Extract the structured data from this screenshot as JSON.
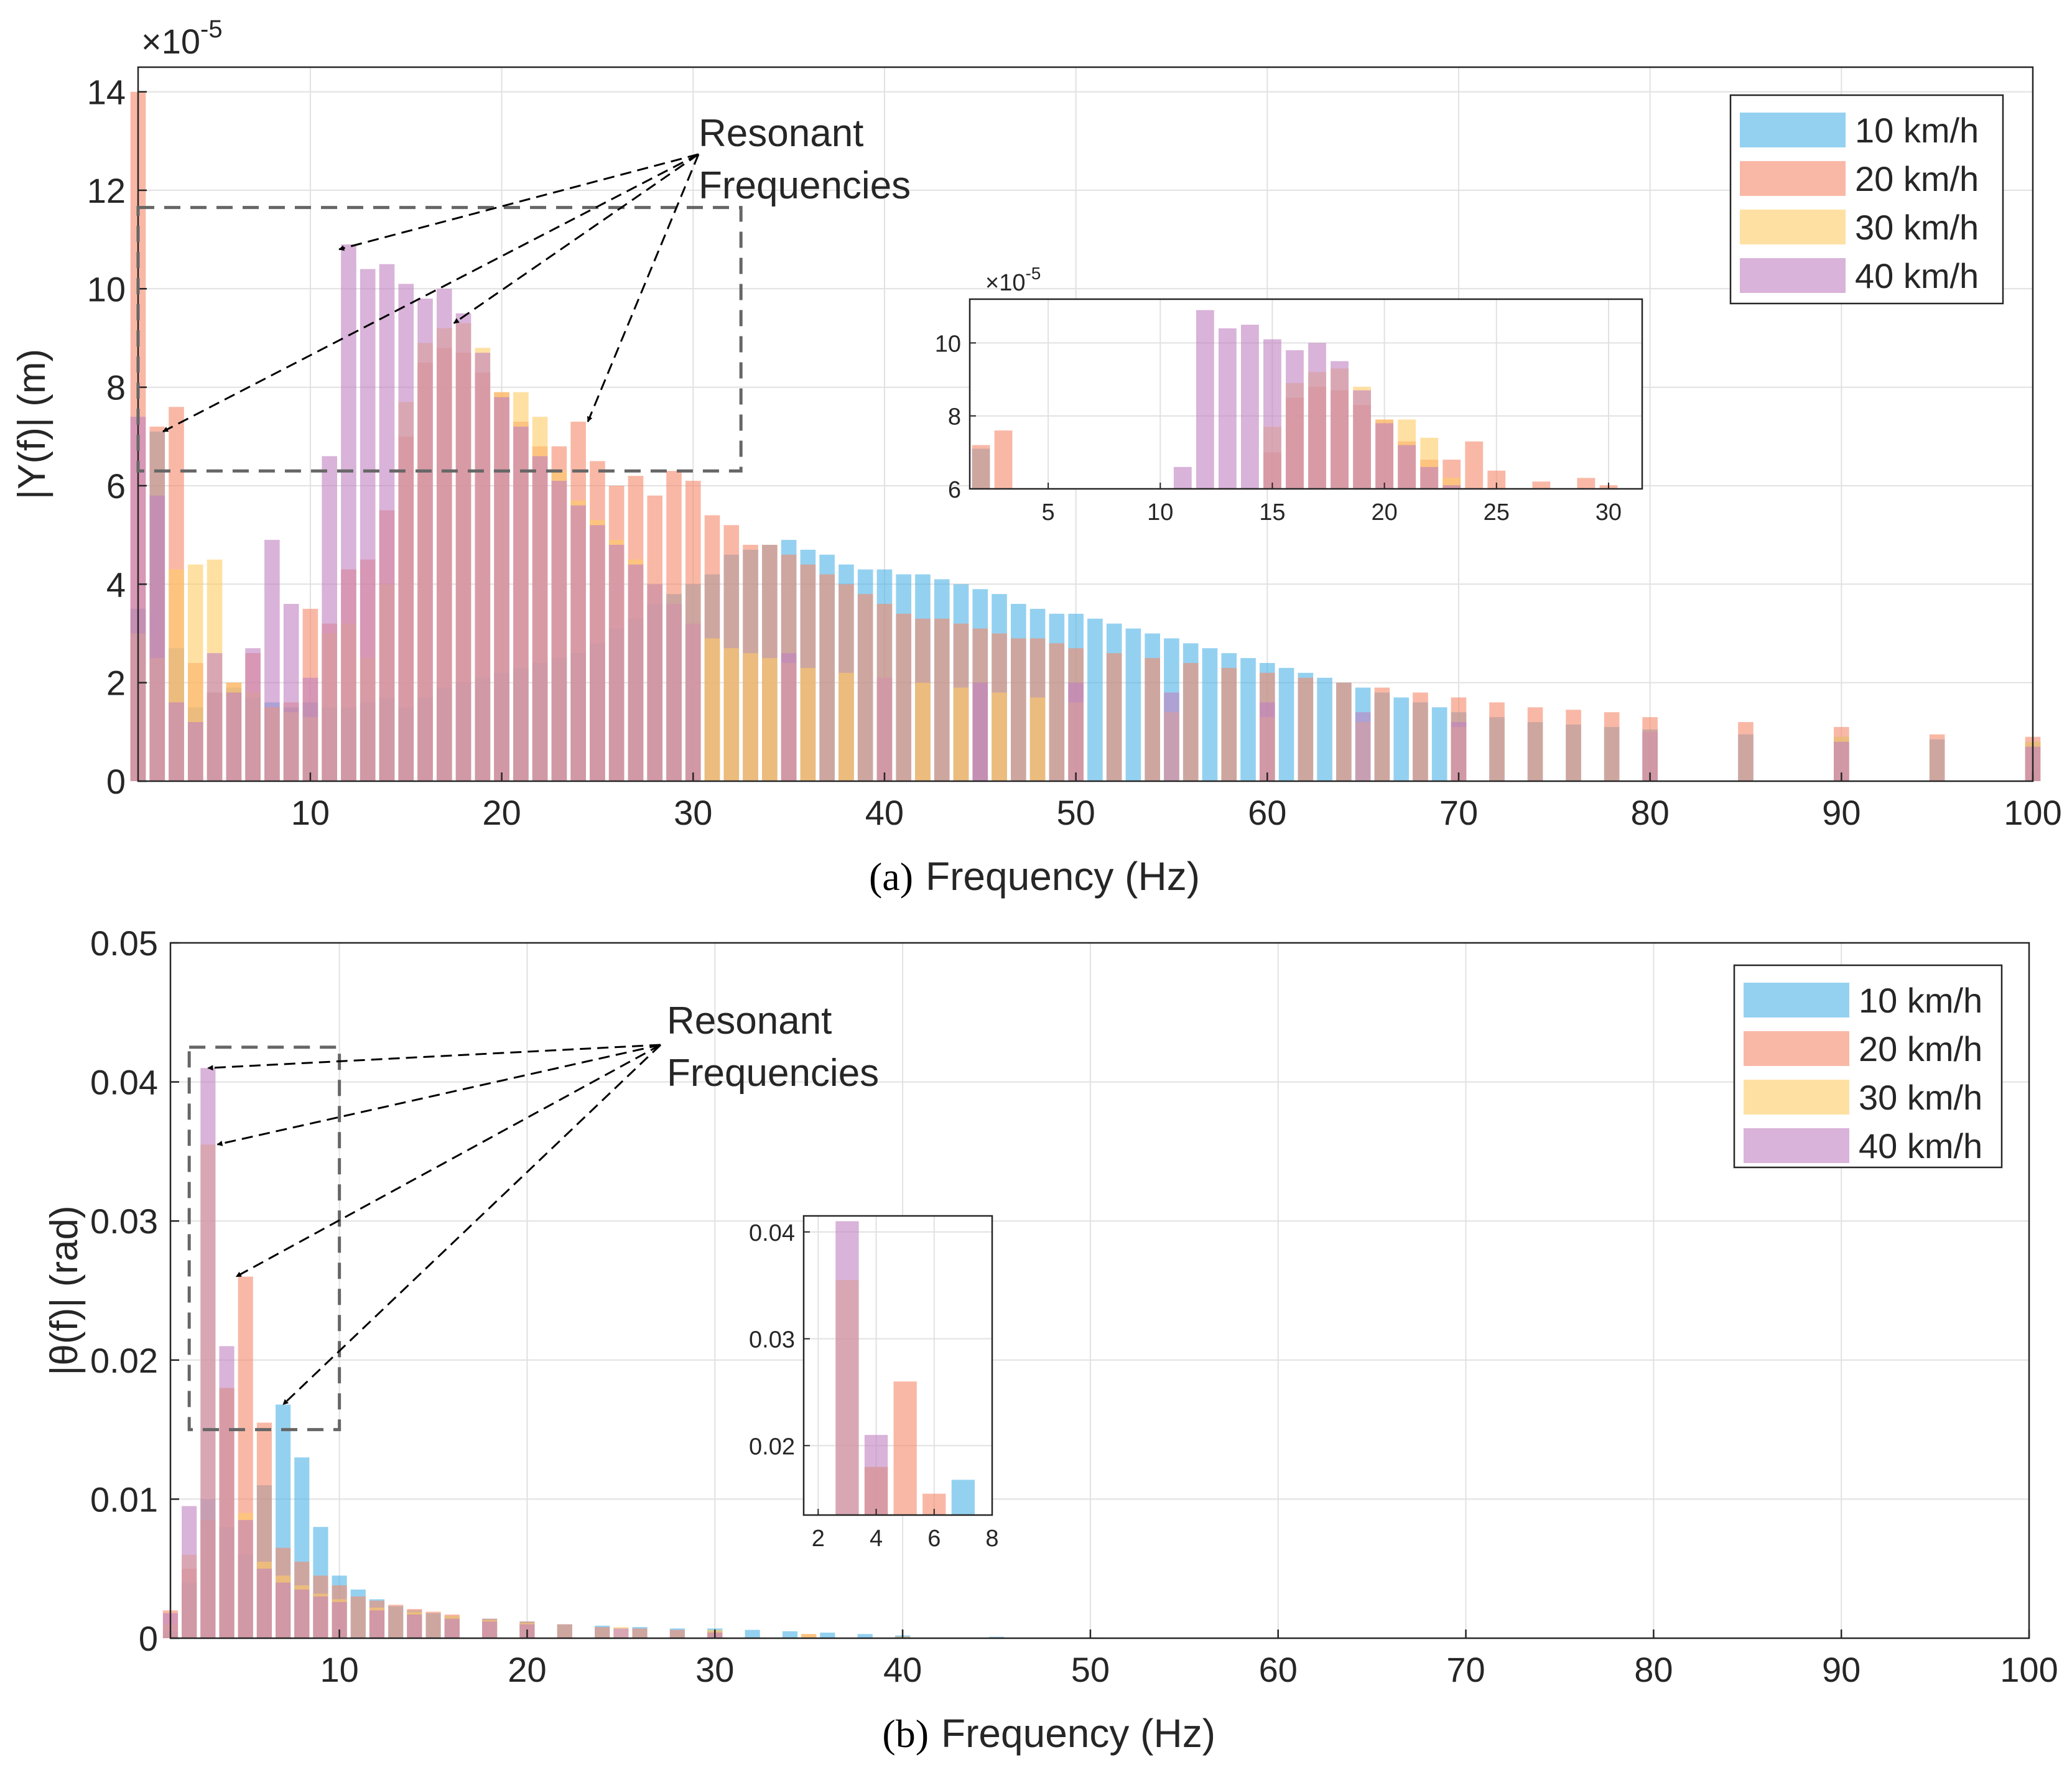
{
  "colors": {
    "10 km/h": "#4DB3E6",
    "20 km/h": "#F5896B",
    "30 km/h": "#FFCC66",
    "40 km/h": "#BF80BF",
    "grid": "#e1e1e1",
    "axis": "#262626"
  },
  "chart_data": [
    {
      "type": "bar",
      "panel_label": "(a)",
      "xlabel": "Frequency (Hz)",
      "ylabel": "|Y(f)| (m)",
      "exponent_label": "×10",
      "exponent_power": "-5",
      "xlim": [
        1,
        100
      ],
      "ylim": [
        0,
        14.5
      ],
      "xticks": [
        10,
        20,
        30,
        40,
        50,
        60,
        70,
        80,
        90,
        100
      ],
      "yticks": [
        0,
        2,
        4,
        6,
        8,
        10,
        12,
        14
      ],
      "grid": true,
      "legend_position": "top-right",
      "annotation": {
        "line1": "Resonant",
        "line2": "Frequencies"
      },
      "highlight_box": {
        "x": [
          1,
          32.5
        ],
        "y": [
          6.3,
          11.65
        ]
      },
      "arrow_targets": [
        [
          2.3,
          7.1
        ],
        [
          11.5,
          10.8
        ],
        [
          17.5,
          9.3
        ],
        [
          24.5,
          7.3
        ]
      ],
      "inset": {
        "exponent_label": "×10",
        "exponent_power": "-5",
        "xlim": [
          1.5,
          31.5
        ],
        "ylim": [
          6,
          11.2
        ],
        "xticks": [
          5,
          10,
          15,
          20,
          25,
          30
        ],
        "yticks": [
          6,
          8,
          10
        ]
      },
      "series": [
        {
          "name": "10 km/h",
          "x": [
            1,
            2,
            3,
            4,
            5,
            6,
            7,
            8,
            9,
            10,
            11,
            12,
            13,
            14,
            15,
            16,
            17,
            18,
            19,
            20,
            21,
            22,
            23,
            24,
            25,
            26,
            27,
            28,
            29,
            30,
            31,
            32,
            33,
            34,
            35,
            36,
            37,
            38,
            39,
            40,
            41,
            42,
            43,
            44,
            45,
            46,
            47,
            48,
            49,
            50,
            51,
            52,
            53,
            54,
            55,
            56,
            57,
            58,
            59,
            60,
            61,
            62,
            63,
            64,
            65,
            66,
            67,
            68,
            69,
            70,
            72,
            74,
            76,
            78,
            80,
            85,
            90,
            95,
            100
          ],
          "values": [
            3.5,
            7.1,
            2.7,
            1.5,
            1.8,
            1.9,
            1.7,
            1.6,
            1.5,
            1.6,
            1.5,
            1.5,
            1.6,
            1.7,
            1.5,
            1.7,
            1.9,
            2.0,
            2.1,
            2.2,
            2.3,
            2.4,
            2.5,
            2.6,
            2.8,
            3.1,
            3.3,
            3.6,
            3.8,
            4.0,
            4.2,
            4.6,
            4.7,
            4.8,
            4.9,
            4.7,
            4.6,
            4.4,
            4.3,
            4.3,
            4.2,
            4.2,
            4.1,
            4.0,
            3.9,
            3.8,
            3.6,
            3.5,
            3.4,
            3.4,
            3.3,
            3.2,
            3.1,
            3.0,
            2.9,
            2.8,
            2.7,
            2.6,
            2.5,
            2.4,
            2.3,
            2.2,
            2.1,
            2.0,
            1.9,
            1.8,
            1.7,
            1.6,
            1.5,
            1.4,
            1.3,
            1.2,
            1.15,
            1.1,
            1.05,
            0.95,
            0.9,
            0.85,
            0.8
          ]
        },
        {
          "name": "20 km/h",
          "x": [
            1,
            2,
            3,
            4,
            5,
            6,
            7,
            8,
            9,
            10,
            11,
            12,
            13,
            14,
            15,
            16,
            17,
            18,
            19,
            20,
            21,
            22,
            23,
            24,
            25,
            26,
            27,
            28,
            29,
            30,
            31,
            32,
            33,
            34,
            35,
            36,
            37,
            38,
            39,
            40,
            41,
            42,
            43,
            44,
            45,
            46,
            47,
            48,
            49,
            50,
            52,
            54,
            56,
            58,
            60,
            62,
            64,
            66,
            68,
            70,
            72,
            74,
            76,
            78,
            80,
            85,
            90,
            95,
            100
          ],
          "values": [
            14.0,
            7.2,
            7.6,
            2.4,
            1.8,
            2.0,
            2.6,
            1.5,
            1.6,
            3.5,
            3.2,
            4.3,
            4.5,
            5.5,
            7.0,
            8.5,
            8.8,
            8.7,
            8.3,
            7.9,
            7.3,
            6.8,
            6.8,
            7.3,
            6.5,
            6.0,
            6.2,
            5.8,
            6.3,
            6.1,
            5.4,
            5.2,
            4.8,
            4.8,
            4.6,
            4.4,
            4.2,
            4.0,
            3.8,
            3.6,
            3.4,
            3.3,
            3.3,
            3.2,
            3.1,
            3.0,
            2.9,
            2.9,
            2.8,
            2.7,
            2.6,
            2.5,
            2.4,
            2.3,
            2.2,
            2.1,
            2.0,
            1.9,
            1.8,
            1.7,
            1.6,
            1.5,
            1.45,
            1.4,
            1.3,
            1.2,
            1.1,
            0.95,
            0.9
          ]
        },
        {
          "name": "30 km/h",
          "x": [
            1,
            2,
            3,
            4,
            5,
            6,
            7,
            8,
            9,
            10,
            11,
            12,
            13,
            14,
            15,
            16,
            17,
            18,
            19,
            20,
            21,
            22,
            23,
            24,
            25,
            26,
            27,
            28,
            29,
            30,
            31,
            32,
            33,
            34,
            35,
            36,
            38,
            40,
            42,
            44,
            46,
            48,
            50,
            55,
            60,
            65,
            70,
            80,
            90,
            100
          ],
          "values": [
            3.0,
            2.5,
            4.3,
            4.4,
            4.5,
            2.0,
            1.8,
            1.5,
            1.4,
            1.3,
            3.0,
            3.2,
            2.5,
            4.0,
            7.7,
            8.9,
            9.2,
            9.3,
            8.8,
            7.9,
            7.9,
            7.4,
            6.3,
            5.7,
            5.3,
            4.9,
            4.5,
            4.0,
            3.6,
            3.2,
            2.9,
            2.7,
            2.6,
            2.5,
            2.4,
            2.3,
            2.2,
            2.1,
            2.0,
            1.9,
            1.8,
            1.7,
            1.6,
            1.4,
            1.3,
            1.2,
            1.1,
            1.0,
            0.9,
            0.8
          ]
        },
        {
          "name": "40 km/h",
          "x": [
            1,
            2,
            3,
            4,
            5,
            6,
            7,
            8,
            9,
            10,
            11,
            12,
            13,
            14,
            15,
            16,
            17,
            18,
            19,
            20,
            21,
            22,
            23,
            24,
            25,
            26,
            27,
            28,
            29,
            30,
            35,
            40,
            45,
            50,
            55,
            60,
            65,
            70,
            80,
            90,
            100
          ],
          "values": [
            7.4,
            5.8,
            1.6,
            1.2,
            2.6,
            1.8,
            2.7,
            4.9,
            3.6,
            2.1,
            6.6,
            10.9,
            10.4,
            10.5,
            10.1,
            9.8,
            10.0,
            9.5,
            8.7,
            7.8,
            7.2,
            6.6,
            6.1,
            5.6,
            5.2,
            4.8,
            4.4,
            4.0,
            3.6,
            3.2,
            2.6,
            2.1,
            2.0,
            2.0,
            1.8,
            1.6,
            1.4,
            1.2,
            1.0,
            0.8,
            0.7
          ]
        }
      ]
    },
    {
      "type": "bar",
      "panel_label": "(b)",
      "xlabel": "Frequency (Hz)",
      "ylabel": "|θ(f)| (rad)",
      "xlim": [
        1,
        100
      ],
      "ylim": [
        0,
        0.05
      ],
      "xticks": [
        10,
        20,
        30,
        40,
        50,
        60,
        70,
        80,
        90,
        100
      ],
      "yticks": [
        0,
        0.01,
        0.02,
        0.03,
        0.04,
        0.05
      ],
      "ytick_labels": [
        "0",
        "0.01",
        "0.02",
        "0.03",
        "0.04",
        "0.05"
      ],
      "grid": true,
      "legend_position": "top-right",
      "annotation": {
        "line1": "Resonant",
        "line2": "Frequencies"
      },
      "highlight_box": {
        "x": [
          2,
          10
        ],
        "y": [
          0.015,
          0.0425
        ]
      },
      "arrow_targets": [
        [
          3,
          0.041
        ],
        [
          3.5,
          0.0355
        ],
        [
          4.5,
          0.026
        ],
        [
          7.0,
          0.0168
        ]
      ],
      "inset": {
        "xlim": [
          1.5,
          8
        ],
        "ylim": [
          0.0135,
          0.0415
        ],
        "xticks": [
          2,
          4,
          6,
          8
        ],
        "yticks": [
          0.02,
          0.03,
          0.04
        ],
        "ytick_labels": [
          "0.02",
          "0.03",
          "0.04"
        ]
      },
      "series": [
        {
          "name": "10 km/h",
          "x": [
            1,
            2,
            3,
            4,
            5,
            6,
            7,
            8,
            9,
            10,
            11,
            12,
            13,
            14,
            15,
            16,
            18,
            20,
            22,
            24,
            26,
            28,
            30,
            32,
            34,
            36,
            38,
            40,
            45,
            50
          ],
          "values": [
            0.0005,
            0.004,
            0.01,
            0.008,
            0.006,
            0.011,
            0.0168,
            0.013,
            0.008,
            0.0045,
            0.0035,
            0.0028,
            0.0023,
            0.002,
            0.0018,
            0.0016,
            0.0014,
            0.0012,
            0.001,
            0.0009,
            0.0008,
            0.0007,
            0.0007,
            0.0006,
            0.0005,
            0.0004,
            0.0003,
            0.0002,
            0.0001,
            5e-05
          ]
        },
        {
          "name": "20 km/h",
          "x": [
            1,
            2,
            3,
            4,
            5,
            6,
            7,
            8,
            9,
            10,
            11,
            12,
            13,
            14,
            15,
            16,
            18,
            20,
            22,
            24,
            26,
            28,
            30,
            35,
            40
          ],
          "values": [
            0.002,
            0.005,
            0.0085,
            0.018,
            0.026,
            0.0155,
            0.0065,
            0.0055,
            0.0045,
            0.0038,
            0.003,
            0.0027,
            0.0024,
            0.0021,
            0.0019,
            0.0017,
            0.0014,
            0.0012,
            0.001,
            0.0008,
            0.0007,
            0.0006,
            0.0005,
            0.0003,
            0.0001
          ]
        },
        {
          "name": "30 km/h",
          "x": [
            1,
            2,
            3,
            4,
            5,
            6,
            7,
            8,
            9,
            10,
            12,
            14,
            16,
            18,
            20,
            25,
            30,
            35,
            40
          ],
          "values": [
            0.001,
            0.006,
            0.0355,
            0.018,
            0.009,
            0.0055,
            0.0045,
            0.0038,
            0.0032,
            0.0028,
            0.0022,
            0.0019,
            0.0016,
            0.0013,
            0.0011,
            0.0008,
            0.0006,
            0.0003,
            0.0001
          ]
        },
        {
          "name": "40 km/h",
          "x": [
            1,
            2,
            3,
            4,
            5,
            6,
            7,
            8,
            9,
            10,
            12,
            14,
            16,
            18,
            20,
            25,
            30
          ],
          "values": [
            0.0018,
            0.0095,
            0.041,
            0.021,
            0.0085,
            0.005,
            0.004,
            0.0035,
            0.003,
            0.0026,
            0.002,
            0.0017,
            0.0014,
            0.0012,
            0.001,
            0.0007,
            0.0004
          ]
        }
      ]
    }
  ]
}
